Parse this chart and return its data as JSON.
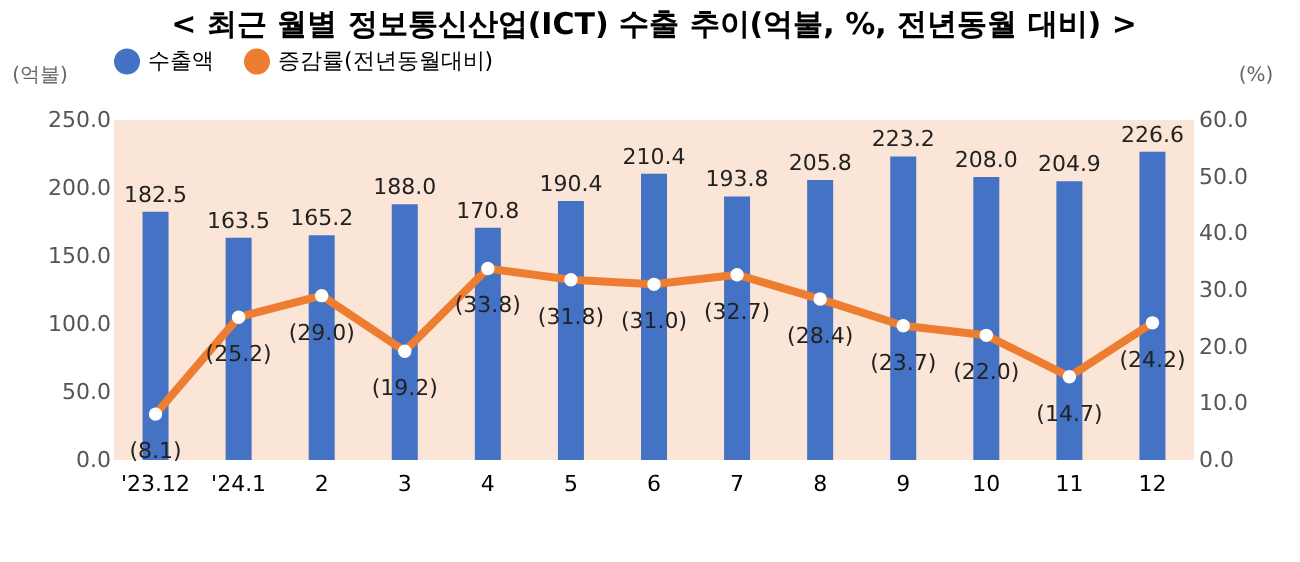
{
  "chart_data": {
    "type": "bar",
    "title": "< 최근 월별 정보통신산업(ICT) 수출 추이(억불, %, 전년동월 대비) >",
    "ylabel": "(억불)",
    "y2label": "(%)",
    "categories": [
      "'23.12",
      "'24.1",
      "2",
      "3",
      "4",
      "5",
      "6",
      "7",
      "8",
      "9",
      "10",
      "11",
      "12"
    ],
    "series": [
      {
        "name": "수출액",
        "type": "bar",
        "color": "#4472c4",
        "values": [
          182.5,
          163.5,
          165.2,
          188.0,
          170.8,
          190.4,
          210.4,
          193.8,
          205.8,
          223.2,
          208.0,
          204.9,
          226.6
        ],
        "value_labels": [
          "182.5",
          "163.5",
          "165.2",
          "188.0",
          "170.8",
          "190.4",
          "210.4",
          "193.8",
          "205.8",
          "223.2",
          "208.0",
          "204.9",
          "226.6"
        ]
      },
      {
        "name": "증감률(전년동월대비)",
        "type": "line",
        "axis": "y2",
        "color": "#ed7d31",
        "marker": "circle",
        "values": [
          8.1,
          25.2,
          29.0,
          19.2,
          33.8,
          31.8,
          31.0,
          32.7,
          28.4,
          23.7,
          22.0,
          14.7,
          24.2
        ],
        "value_labels": [
          "(8.1)",
          "(25.2)",
          "(29.0)",
          "(19.2)",
          "(33.8)",
          "(31.8)",
          "(31.0)",
          "(32.7)",
          "(28.4)",
          "(23.7)",
          "(22.0)",
          "(14.7)",
          "(24.2)"
        ]
      }
    ],
    "ylim": [
      0,
      250
    ],
    "yticks": [
      {
        "value": 0,
        "label": "0.0"
      },
      {
        "value": 50,
        "label": "50.0"
      },
      {
        "value": 100,
        "label": "100.0"
      },
      {
        "value": 150,
        "label": "150.0"
      },
      {
        "value": 200,
        "label": "200.0"
      },
      {
        "value": 250,
        "label": "250.0"
      }
    ],
    "y2lim": [
      0,
      60
    ],
    "y2ticks": [
      {
        "value": 0,
        "label": "0.0"
      },
      {
        "value": 10,
        "label": "10.0"
      },
      {
        "value": 20,
        "label": "20.0"
      },
      {
        "value": 30,
        "label": "30.0"
      },
      {
        "value": 40,
        "label": "40.0"
      },
      {
        "value": 50,
        "label": "50.0"
      },
      {
        "value": 60,
        "label": "60.0"
      }
    ],
    "grid": false,
    "legend": "top"
  }
}
